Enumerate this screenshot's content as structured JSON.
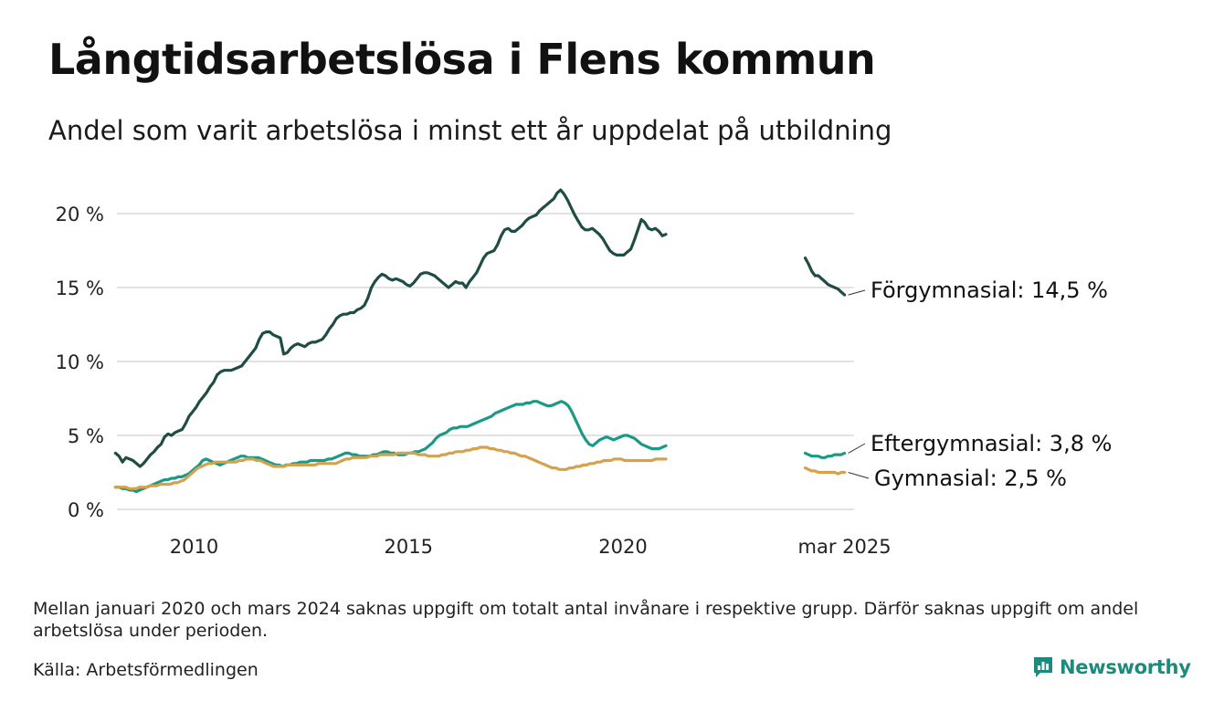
{
  "title": "Långtidsarbetslösa i Flens kommun",
  "subtitle": "Andel som varit arbetslösa i minst ett år uppdelat på utbildning",
  "note": "Mellan januari 2020 och mars 2024 saknas uppgift om totalt antal invånare i respektive grupp. Därför saknas uppgift om andel arbetslösa under perioden.",
  "source": "Källa: Arbetsförmedlingen",
  "brand": {
    "name": "Newsworthy",
    "icon": "bar-chart-logo-icon",
    "color": "#1e8a7c"
  },
  "chart_data": {
    "type": "line",
    "x_ticks": [
      "2010",
      "2015",
      "2020",
      "mar 2025"
    ],
    "y_ticks": [
      "0 %",
      "5 %",
      "10 %",
      "15 %",
      "20 %"
    ],
    "ylim": [
      0,
      20
    ],
    "grid": "horizontal",
    "segments": [
      {
        "start": "2008-03",
        "end": "2021-01"
      },
      {
        "start": "2024-04",
        "end": "2025-03"
      }
    ],
    "series": [
      {
        "name": "Förgymnasial",
        "end_label": "Förgymnasial: 14,5 %",
        "color": "#1f4d45",
        "values": [
          [
            3.8,
            3.6,
            3.2,
            3.5,
            3.4,
            3.3,
            3.1,
            2.9,
            3.1,
            3.4,
            3.7,
            3.9,
            4.2,
            4.4,
            4.9,
            5.1,
            5.0,
            5.2,
            5.3,
            5.4,
            5.8,
            6.3,
            6.6,
            6.9,
            7.3,
            7.6,
            7.9,
            8.3,
            8.6,
            9.1,
            9.3,
            9.4,
            9.4,
            9.4,
            9.5,
            9.6,
            9.7,
            10.0,
            10.3,
            10.6,
            10.9,
            11.5,
            11.9,
            12.0,
            12.0,
            11.8,
            11.7,
            11.6,
            10.5,
            10.6,
            10.9,
            11.1,
            11.2,
            11.1,
            11.0,
            11.2,
            11.3,
            11.3,
            11.4,
            11.5,
            11.8,
            12.2,
            12.5,
            12.9,
            13.1,
            13.2,
            13.2,
            13.3,
            13.3,
            13.5,
            13.6,
            13.8,
            14.3,
            15.0,
            15.4,
            15.7,
            15.9,
            15.8,
            15.6,
            15.5,
            15.6,
            15.5,
            15.4,
            15.2,
            15.1,
            15.3,
            15.6,
            15.9,
            16.0,
            16.0,
            15.9,
            15.8,
            15.6,
            15.4,
            15.2,
            15.0,
            15.2,
            15.4,
            15.3,
            15.3,
            15.0,
            15.4,
            15.7,
            16.0,
            16.5,
            17.0,
            17.3,
            17.4,
            17.5,
            17.9,
            18.5,
            18.9,
            19.0,
            18.8,
            18.8,
            19.0,
            19.2,
            19.5,
            19.7,
            19.8,
            19.9,
            20.2,
            20.4,
            20.6,
            20.8,
            21.0,
            21.4,
            21.6,
            21.3,
            20.9,
            20.4,
            19.9,
            19.5,
            19.1,
            18.9,
            18.9,
            19.0,
            18.8,
            18.6,
            18.3,
            17.9,
            17.5,
            17.3,
            17.2,
            17.2,
            17.2,
            17.4,
            17.6,
            18.2,
            18.9,
            19.6,
            19.4,
            19.0,
            18.9,
            19.0,
            18.8,
            18.5,
            18.6
          ],
          [
            17.0,
            16.6,
            16.1,
            15.8,
            15.8,
            15.6,
            15.4,
            15.2,
            15.1,
            15.0,
            14.9,
            14.7,
            14.5
          ]
        ]
      },
      {
        "name": "Eftergymnasial",
        "end_label": "Eftergymnasial:  3,8 %",
        "color": "#1a9a86",
        "values": [
          [
            1.5,
            1.5,
            1.4,
            1.4,
            1.3,
            1.3,
            1.2,
            1.3,
            1.4,
            1.5,
            1.6,
            1.7,
            1.8,
            1.9,
            2.0,
            2.0,
            2.1,
            2.1,
            2.2,
            2.2,
            2.3,
            2.4,
            2.6,
            2.8,
            3.0,
            3.3,
            3.4,
            3.3,
            3.2,
            3.1,
            3.0,
            3.1,
            3.2,
            3.3,
            3.4,
            3.5,
            3.6,
            3.6,
            3.5,
            3.5,
            3.5,
            3.5,
            3.4,
            3.3,
            3.2,
            3.1,
            3.0,
            3.0,
            2.9,
            3.0,
            3.0,
            3.1,
            3.1,
            3.2,
            3.2,
            3.2,
            3.3,
            3.3,
            3.3,
            3.3,
            3.3,
            3.4,
            3.4,
            3.5,
            3.6,
            3.7,
            3.8,
            3.8,
            3.7,
            3.7,
            3.6,
            3.6,
            3.6,
            3.6,
            3.7,
            3.7,
            3.8,
            3.9,
            3.9,
            3.8,
            3.8,
            3.7,
            3.7,
            3.7,
            3.8,
            3.8,
            3.9,
            3.9,
            4.0,
            4.1,
            4.3,
            4.5,
            4.8,
            5.0,
            5.1,
            5.2,
            5.4,
            5.5,
            5.5,
            5.6,
            5.6,
            5.6,
            5.7,
            5.8,
            5.9,
            6.0,
            6.1,
            6.2,
            6.3,
            6.5,
            6.6,
            6.7,
            6.8,
            6.9,
            7.0,
            7.1,
            7.1,
            7.1,
            7.2,
            7.2,
            7.3,
            7.3,
            7.2,
            7.1,
            7.0,
            7.0,
            7.1,
            7.2,
            7.3,
            7.2,
            7.0,
            6.6,
            6.1,
            5.6,
            5.1,
            4.7,
            4.4,
            4.3,
            4.5,
            4.7,
            4.8,
            4.9,
            4.8,
            4.7,
            4.8,
            4.9,
            5.0,
            5.0,
            4.9,
            4.8,
            4.6,
            4.4,
            4.3,
            4.2,
            4.1,
            4.1,
            4.1,
            4.2,
            4.3
          ],
          [
            3.8,
            3.7,
            3.6,
            3.6,
            3.6,
            3.5,
            3.5,
            3.6,
            3.6,
            3.7,
            3.7,
            3.7,
            3.8
          ]
        ]
      },
      {
        "name": "Gymnasial",
        "end_label": "Gymnasial:  2,5 %",
        "color": "#d4a24c",
        "values": [
          [
            1.5,
            1.5,
            1.5,
            1.5,
            1.4,
            1.4,
            1.4,
            1.5,
            1.5,
            1.5,
            1.6,
            1.6,
            1.6,
            1.7,
            1.7,
            1.7,
            1.7,
            1.8,
            1.8,
            1.9,
            2.0,
            2.2,
            2.4,
            2.6,
            2.8,
            2.9,
            3.0,
            3.1,
            3.1,
            3.2,
            3.2,
            3.2,
            3.2,
            3.2,
            3.2,
            3.2,
            3.3,
            3.3,
            3.4,
            3.4,
            3.4,
            3.3,
            3.3,
            3.2,
            3.1,
            3.0,
            2.9,
            2.9,
            2.9,
            2.9,
            3.0,
            3.0,
            3.0,
            3.0,
            3.0,
            3.0,
            3.0,
            3.0,
            3.0,
            3.1,
            3.1,
            3.1,
            3.1,
            3.1,
            3.1,
            3.2,
            3.3,
            3.4,
            3.4,
            3.5,
            3.5,
            3.5,
            3.5,
            3.5,
            3.6,
            3.6,
            3.6,
            3.7,
            3.7,
            3.7,
            3.7,
            3.7,
            3.8,
            3.8,
            3.8,
            3.8,
            3.8,
            3.8,
            3.7,
            3.7,
            3.7,
            3.6,
            3.6,
            3.6,
            3.6,
            3.7,
            3.7,
            3.8,
            3.8,
            3.9,
            3.9,
            3.9,
            4.0,
            4.0,
            4.1,
            4.1,
            4.2,
            4.2,
            4.2,
            4.1,
            4.1,
            4.0,
            4.0,
            3.9,
            3.9,
            3.8,
            3.8,
            3.7,
            3.6,
            3.6,
            3.5,
            3.4,
            3.3,
            3.2,
            3.1,
            3.0,
            2.9,
            2.8,
            2.8,
            2.7,
            2.7,
            2.7,
            2.8,
            2.8,
            2.9,
            2.9,
            3.0,
            3.0,
            3.1,
            3.1,
            3.2,
            3.2,
            3.3,
            3.3,
            3.3,
            3.4,
            3.4,
            3.4,
            3.3,
            3.3,
            3.3,
            3.3,
            3.3,
            3.3,
            3.3,
            3.3,
            3.3,
            3.4,
            3.4,
            3.4,
            3.4
          ],
          [
            2.8,
            2.7,
            2.6,
            2.6,
            2.5,
            2.5,
            2.5,
            2.5,
            2.5,
            2.5,
            2.4,
            2.5,
            2.5
          ]
        ]
      }
    ]
  }
}
